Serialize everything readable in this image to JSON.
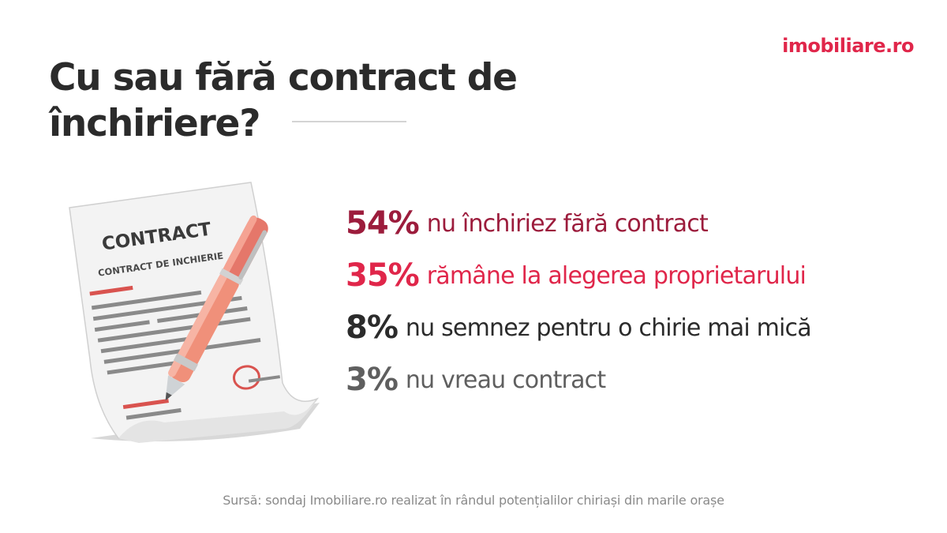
{
  "brand": {
    "logo_text": "imobiliare.ro",
    "color": "#e0264a"
  },
  "title": "Cu sau fără contract de închiriere?",
  "illustration": {
    "contract_heading": "CONTRACT",
    "contract_subheading": "CONTRACT DE INCHIERIE",
    "icon": "contract-with-pen"
  },
  "chart_data": {
    "type": "table",
    "unit": "%",
    "rows": [
      {
        "value": 54,
        "pct_text": "54%",
        "label": "nu închiriez fără contract",
        "color": "#9c1c3c"
      },
      {
        "value": 35,
        "pct_text": "35%",
        "label": "rămâne la alegerea proprietarului",
        "color": "#e0264a"
      },
      {
        "value": 8,
        "pct_text": "8%",
        "label": "nu semnez pentru o chirie mai mică",
        "color": "#2b2b2b"
      },
      {
        "value": 3,
        "pct_text": "3%",
        "label": "nu vreau contract",
        "color": "#5f5f5f"
      }
    ]
  },
  "source": "Sursă: sondaj Imobiliare.ro realizat în rândul potențialilor chiriași din marile orașe"
}
